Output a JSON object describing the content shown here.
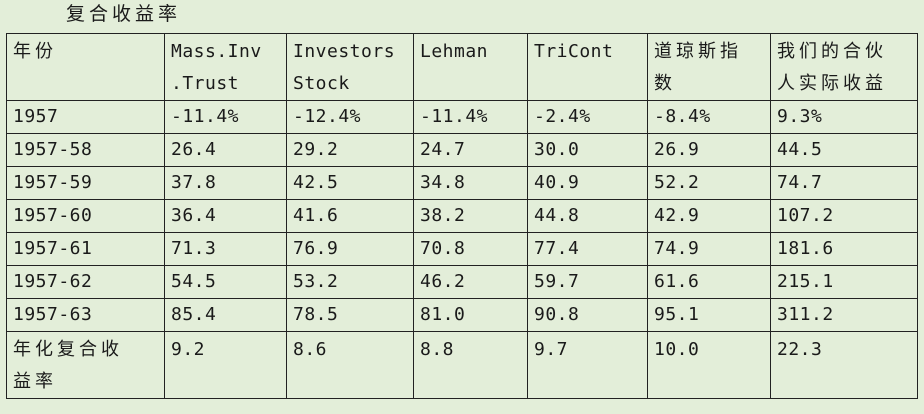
{
  "caption": "复合收益率",
  "header": {
    "c0": "年份",
    "c1": "Mass.Inv\n.Trust",
    "c2": "Investors\nStock",
    "c3": "Lehman",
    "c4": "TriCont",
    "c5": "道琼斯指\n数",
    "c6": "我们的合伙\n人实际收益"
  },
  "rows": [
    {
      "year": "1957",
      "v1": "-11.4%",
      "v2": "-12.4%",
      "v3": "-11.4%",
      "v4": "-2.4%",
      "v5": "-8.4%",
      "v6": "9.3%"
    },
    {
      "year": "1957-58",
      "v1": "26.4",
      "v2": "29.2",
      "v3": "24.7",
      "v4": "30.0",
      "v5": "26.9",
      "v6": "44.5"
    },
    {
      "year": "1957-59",
      "v1": "37.8",
      "v2": "42.5",
      "v3": "34.8",
      "v4": "40.9",
      "v5": "52.2",
      "v6": "74.7"
    },
    {
      "year": "1957-60",
      "v1": "36.4",
      "v2": "41.6",
      "v3": "38.2",
      "v4": "44.8",
      "v5": "42.9",
      "v6": "107.2"
    },
    {
      "year": "1957-61",
      "v1": "71.3",
      "v2": "76.9",
      "v3": "70.8",
      "v4": "77.4",
      "v5": "74.9",
      "v6": "181.6"
    },
    {
      "year": "1957-62",
      "v1": "54.5",
      "v2": "53.2",
      "v3": "46.2",
      "v4": "59.7",
      "v5": "61.6",
      "v6": "215.1"
    },
    {
      "year": "1957-63",
      "v1": "85.4",
      "v2": "78.5",
      "v3": "81.0",
      "v4": "90.8",
      "v5": "95.1",
      "v6": "311.2"
    }
  ],
  "footer": {
    "label": "年化复合收\n益率",
    "v1": "9.2",
    "v2": "8.6",
    "v3": "8.8",
    "v4": "9.7",
    "v5": "10.0",
    "v6": "22.3"
  }
}
